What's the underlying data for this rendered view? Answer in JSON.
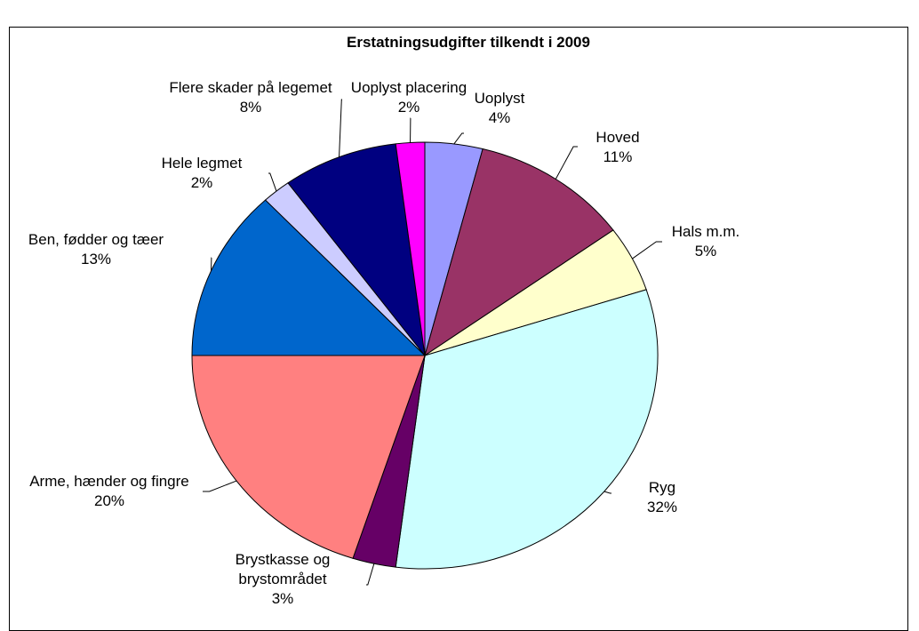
{
  "chart_data": {
    "type": "pie",
    "title": "Erstatningsudgifter tilkendt i 2009",
    "categories": [
      "Uoplyst",
      "Hoved",
      "Hals m.m.",
      "Ryg",
      "Brystkasse og brystområdet",
      "Arme, hænder og fingre",
      "Ben, fødder og tæer",
      "Hele legmet",
      "Flere skader på legemet",
      "Uoplyst placering"
    ],
    "values": [
      4,
      11,
      5,
      32,
      3,
      20,
      13,
      2,
      8,
      2
    ],
    "value_labels": [
      "4%",
      "11%",
      "5%",
      "32%",
      "3%",
      "20%",
      "13%",
      "2%",
      "8%",
      "2%"
    ],
    "colors": [
      "#9999FF",
      "#993366",
      "#FFFFCC",
      "#CCFFFF",
      "#660066",
      "#FF8080",
      "#0066CC",
      "#CCCCFF",
      "#000080",
      "#FF00FF"
    ]
  }
}
